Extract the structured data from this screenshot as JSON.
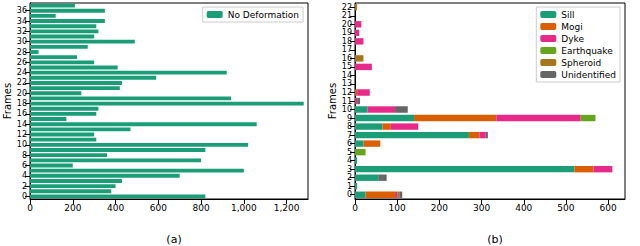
{
  "chart_data": [
    {
      "type": "bar",
      "title": "(a)",
      "orientation": "horizontal",
      "ylabel": "Frames",
      "categories": [
        0,
        null,
        2,
        null,
        4,
        null,
        6,
        null,
        8,
        null,
        10,
        null,
        12,
        null,
        14,
        null,
        16,
        null,
        18,
        null,
        20,
        null,
        22,
        null,
        24,
        null,
        26,
        null,
        28,
        null,
        30,
        null,
        32,
        null,
        34,
        null,
        36,
        null
      ],
      "series": [
        {
          "name": "No Deformation",
          "color": "#1b9e77",
          "values": [
            820,
            380,
            400,
            430,
            700,
            1000,
            200,
            800,
            360,
            820,
            1020,
            310,
            300,
            470,
            1060,
            170,
            310,
            320,
            1280,
            940,
            240,
            420,
            430,
            590,
            920,
            410,
            300,
            220,
            40,
            270,
            490,
            300,
            320,
            310,
            350,
            120,
            350,
            210
          ]
        }
      ],
      "xlim": [
        0,
        1300
      ],
      "xticks": [
        0,
        200,
        400,
        600,
        800,
        1000,
        1200
      ],
      "legend": "upper right",
      "grid": false
    },
    {
      "type": "bar",
      "title": "(b)",
      "orientation": "horizontal",
      "ylabel": "Frames",
      "stacked": true,
      "categories": [
        0,
        1,
        2,
        3,
        4,
        5,
        6,
        7,
        8,
        9,
        10,
        11,
        12,
        13,
        14,
        15,
        16,
        17,
        18,
        19,
        20,
        21,
        22
      ],
      "series": [
        {
          "name": "Sill",
          "color": "#1b9e77",
          "values": [
            25,
            5,
            55,
            520,
            5,
            0,
            20,
            270,
            65,
            140,
            30,
            0,
            0,
            0,
            0,
            0,
            0,
            0,
            0,
            0,
            0,
            0,
            0
          ]
        },
        {
          "name": "Mogi",
          "color": "#d95f02",
          "values": [
            70,
            0,
            0,
            45,
            0,
            0,
            40,
            25,
            20,
            195,
            0,
            0,
            5,
            0,
            0,
            0,
            0,
            0,
            0,
            0,
            0,
            0,
            0
          ]
        },
        {
          "name": "Dyke",
          "color": "#e7298a",
          "values": [
            5,
            0,
            0,
            45,
            0,
            0,
            0,
            15,
            65,
            200,
            65,
            5,
            30,
            0,
            0,
            40,
            0,
            0,
            20,
            10,
            15,
            0,
            0
          ]
        },
        {
          "name": "Earthquake",
          "color": "#66a61e",
          "values": [
            0,
            0,
            0,
            0,
            0,
            25,
            0,
            0,
            0,
            35,
            0,
            0,
            0,
            0,
            0,
            0,
            0,
            0,
            0,
            0,
            0,
            0,
            0
          ]
        },
        {
          "name": "Spheroid",
          "color": "#a6761d",
          "values": [
            5,
            0,
            0,
            0,
            0,
            0,
            0,
            0,
            0,
            0,
            0,
            0,
            0,
            0,
            0,
            0,
            20,
            0,
            0,
            0,
            0,
            0,
            5
          ]
        },
        {
          "name": "Unidentified",
          "color": "#666666",
          "values": [
            7,
            0,
            20,
            0,
            0,
            0,
            0,
            5,
            0,
            0,
            30,
            7,
            0,
            0,
            0,
            0,
            0,
            0,
            0,
            0,
            0,
            0,
            0
          ]
        }
      ],
      "xlim": [
        0,
        640
      ],
      "xticks": [
        0,
        100,
        200,
        300,
        400,
        500,
        600
      ],
      "legend": "upper right",
      "grid": false
    }
  ]
}
